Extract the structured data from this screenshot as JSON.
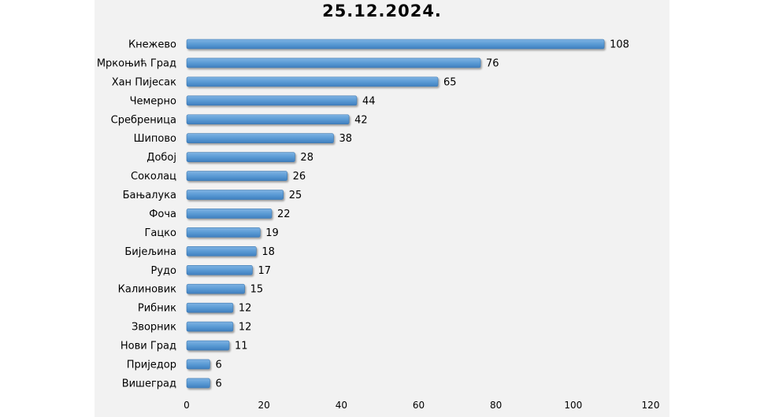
{
  "chart_data": {
    "type": "bar",
    "orientation": "horizontal",
    "title": "25.12.2024.",
    "categories": [
      "Кнежево",
      "Мркоњић Град",
      "Хан Пијесак",
      "Чемерно",
      "Сребреница",
      "Шипово",
      "Добој",
      "Соколац",
      "Бањалука",
      "Фоча",
      "Гацко",
      "Бијељина",
      "Рудо",
      "Калиновик",
      "Рибник",
      "Зворник",
      "Нови Град",
      "Приједор",
      "Вишеград"
    ],
    "values": [
      108,
      76,
      65,
      44,
      42,
      38,
      28,
      26,
      25,
      22,
      19,
      18,
      17,
      15,
      12,
      12,
      11,
      6,
      6
    ],
    "xlim": [
      0,
      120
    ],
    "xticks": [
      0,
      20,
      40,
      60,
      80,
      100,
      120
    ],
    "xlabel": "",
    "ylabel": "",
    "grid": false,
    "legend": "none",
    "bar_color": "#5b9bd5",
    "bar_edge_color": "#3d78b0"
  }
}
